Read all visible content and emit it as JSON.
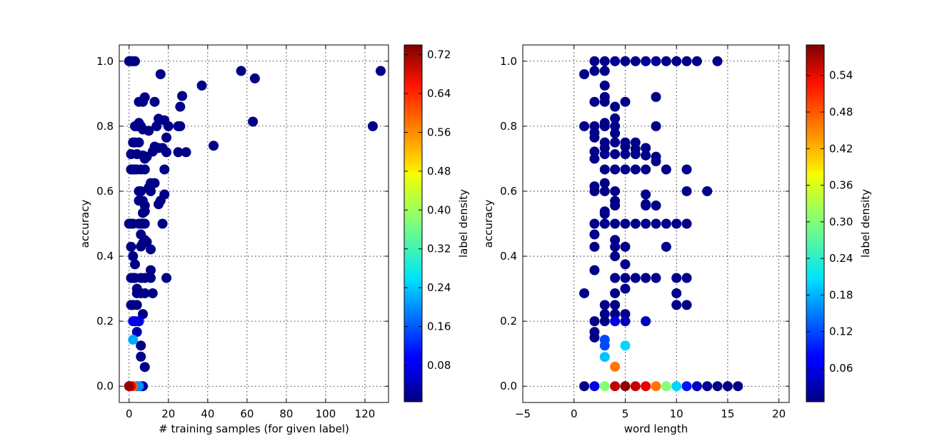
{
  "chart_data": [
    {
      "type": "scatter",
      "title": "",
      "xlabel": "# training samples (for given label)",
      "ylabel": "accuracy",
      "xlim": [
        -5,
        132
      ],
      "ylim": [
        -0.05,
        1.05
      ],
      "xticks": [
        0,
        20,
        40,
        60,
        80,
        100,
        120
      ],
      "yticks": [
        0.0,
        0.2,
        0.4,
        0.6,
        0.8,
        1.0
      ],
      "xtick_labels": [
        "0",
        "20",
        "40",
        "60",
        "80",
        "100",
        "120"
      ],
      "ytick_labels": [
        "0.0",
        "0.2",
        "0.4",
        "0.6",
        "0.8",
        "1.0"
      ],
      "grid": true,
      "colorbar": {
        "label": "label density",
        "range": [
          0.005,
          0.74
        ],
        "ticks": [
          0.08,
          0.16,
          0.24,
          0.32,
          0.4,
          0.48,
          0.56,
          0.64,
          0.72
        ],
        "tick_labels": [
          "0.08",
          "0.16",
          "0.24",
          "0.32",
          "0.40",
          "0.48",
          "0.56",
          "0.64",
          "0.72"
        ]
      },
      "points": [
        [
          0,
          1.0,
          0.01
        ],
        [
          1,
          1.0,
          0.01
        ],
        [
          2,
          1.0,
          0.01
        ],
        [
          3,
          1.0,
          0.01
        ],
        [
          16,
          0.96,
          0.01
        ],
        [
          37,
          0.925,
          0.01
        ],
        [
          57,
          0.97,
          0.01
        ],
        [
          64,
          0.947,
          0.01
        ],
        [
          128,
          0.97,
          0.01
        ],
        [
          5,
          0.875,
          0.01
        ],
        [
          7,
          0.875,
          0.01
        ],
        [
          8,
          0.889,
          0.01
        ],
        [
          13,
          0.875,
          0.01
        ],
        [
          27,
          0.893,
          0.01
        ],
        [
          26,
          0.86,
          0.01
        ],
        [
          3,
          0.8,
          0.01
        ],
        [
          4,
          0.8,
          0.01
        ],
        [
          5,
          0.81,
          0.01
        ],
        [
          6,
          0.8,
          0.01
        ],
        [
          7,
          0.79,
          0.01
        ],
        [
          10,
          0.786,
          0.01
        ],
        [
          14,
          0.8,
          0.01
        ],
        [
          15,
          0.823,
          0.01
        ],
        [
          18,
          0.818,
          0.01
        ],
        [
          20,
          0.8,
          0.01
        ],
        [
          25,
          0.8,
          0.01
        ],
        [
          26,
          0.8,
          0.01
        ],
        [
          63,
          0.814,
          0.01
        ],
        [
          124,
          0.8,
          0.01
        ],
        [
          19,
          0.765,
          0.01
        ],
        [
          2,
          0.75,
          0.01
        ],
        [
          3,
          0.75,
          0.01
        ],
        [
          5,
          0.75,
          0.01
        ],
        [
          13,
          0.737,
          0.01
        ],
        [
          15,
          0.733,
          0.01
        ],
        [
          12,
          0.722,
          0.01
        ],
        [
          43,
          0.74,
          0.01
        ],
        [
          1,
          0.714,
          0.01
        ],
        [
          4,
          0.714,
          0.01
        ],
        [
          7,
          0.71,
          0.01
        ],
        [
          8,
          0.7,
          0.01
        ],
        [
          9,
          0.706,
          0.01
        ],
        [
          17,
          0.733,
          0.01
        ],
        [
          19,
          0.72,
          0.01
        ],
        [
          25,
          0.72,
          0.01
        ],
        [
          29,
          0.72,
          0.01
        ],
        [
          1,
          0.667,
          0.01
        ],
        [
          2,
          0.667,
          0.01
        ],
        [
          3,
          0.667,
          0.01
        ],
        [
          4,
          0.667,
          0.01
        ],
        [
          6,
          0.667,
          0.01
        ],
        [
          8,
          0.667,
          0.01
        ],
        [
          18,
          0.667,
          0.01
        ],
        [
          11,
          0.625,
          0.01
        ],
        [
          13,
          0.625,
          0.01
        ],
        [
          10,
          0.611,
          0.01
        ],
        [
          5,
          0.6,
          0.01
        ],
        [
          6,
          0.6,
          0.01
        ],
        [
          11,
          0.6,
          0.01
        ],
        [
          18,
          0.59,
          0.01
        ],
        [
          5,
          0.571,
          0.01
        ],
        [
          7,
          0.57,
          0.01
        ],
        [
          16,
          0.571,
          0.01
        ],
        [
          15,
          0.56,
          0.01
        ],
        [
          8,
          0.556,
          0.01
        ],
        [
          7,
          0.533,
          0.01
        ],
        [
          8,
          0.538,
          0.01
        ],
        [
          0,
          0.5,
          0.01
        ],
        [
          1,
          0.5,
          0.01
        ],
        [
          2,
          0.5,
          0.01
        ],
        [
          5,
          0.5,
          0.01
        ],
        [
          6,
          0.5,
          0.01
        ],
        [
          7,
          0.5,
          0.01
        ],
        [
          8,
          0.5,
          0.01
        ],
        [
          17,
          0.5,
          0.01
        ],
        [
          6,
          0.467,
          0.01
        ],
        [
          7,
          0.44,
          0.01
        ],
        [
          8,
          0.45,
          0.01
        ],
        [
          9,
          0.444,
          0.01
        ],
        [
          6,
          0.43,
          0.01
        ],
        [
          1,
          0.429,
          0.01
        ],
        [
          11,
          0.421,
          0.01
        ],
        [
          2,
          0.4,
          0.01
        ],
        [
          3,
          0.375,
          0.01
        ],
        [
          11,
          0.357,
          0.01
        ],
        [
          1,
          0.333,
          0.01
        ],
        [
          2,
          0.333,
          0.01
        ],
        [
          3,
          0.333,
          0.01
        ],
        [
          6,
          0.333,
          0.01
        ],
        [
          8,
          0.333,
          0.01
        ],
        [
          11,
          0.333,
          0.01
        ],
        [
          19,
          0.333,
          0.01
        ],
        [
          4,
          0.3,
          0.01
        ],
        [
          4,
          0.286,
          0.01
        ],
        [
          6,
          0.286,
          0.01
        ],
        [
          8,
          0.286,
          0.01
        ],
        [
          12,
          0.286,
          0.01
        ],
        [
          1,
          0.25,
          0.01
        ],
        [
          2,
          0.25,
          0.01
        ],
        [
          4,
          0.25,
          0.01
        ],
        [
          7,
          0.222,
          0.01
        ],
        [
          5,
          0.2,
          0.01
        ],
        [
          2,
          0.2,
          0.08
        ],
        [
          3,
          0.2,
          0.08
        ],
        [
          5,
          0.2,
          0.08
        ],
        [
          4,
          0.167,
          0.04
        ],
        [
          2,
          0.143,
          0.22
        ],
        [
          6,
          0.125,
          0.01
        ],
        [
          6,
          0.091,
          0.01
        ],
        [
          8,
          0.059,
          0.01
        ],
        [
          6,
          0.0,
          0.02
        ],
        [
          7,
          0.0,
          0.03
        ],
        [
          5,
          0.0,
          0.2
        ],
        [
          4,
          0.0,
          0.16
        ],
        [
          2,
          0.0,
          0.58
        ],
        [
          1,
          0.0,
          0.65
        ],
        [
          0,
          0.0,
          0.72
        ]
      ]
    },
    {
      "type": "scatter",
      "title": "",
      "xlabel": "word length",
      "ylabel": "accuracy",
      "xlim": [
        -5,
        21
      ],
      "ylim": [
        -0.05,
        1.05
      ],
      "xticks": [
        -5,
        0,
        5,
        10,
        15,
        20
      ],
      "yticks": [
        0.0,
        0.2,
        0.4,
        0.6,
        0.8,
        1.0
      ],
      "xtick_labels": [
        "−5",
        "0",
        "5",
        "10",
        "15",
        "20"
      ],
      "ytick_labels": [
        "0.0",
        "0.2",
        "0.4",
        "0.6",
        "0.8",
        "1.0"
      ],
      "grid": true,
      "colorbar": {
        "label": "label density",
        "range": [
          0.005,
          0.59
        ],
        "ticks": [
          0.06,
          0.12,
          0.18,
          0.24,
          0.3,
          0.36,
          0.42,
          0.48,
          0.54
        ],
        "tick_labels": [
          "0.06",
          "0.12",
          "0.18",
          "0.24",
          "0.30",
          "0.36",
          "0.42",
          "0.48",
          "0.54"
        ]
      },
      "points": [
        [
          2,
          1.0,
          0.01
        ],
        [
          3,
          1.0,
          0.01
        ],
        [
          4,
          1.0,
          0.02
        ],
        [
          5,
          1.0,
          0.01
        ],
        [
          6,
          1.0,
          0.01
        ],
        [
          7,
          1.0,
          0.02
        ],
        [
          8,
          1.0,
          0.02
        ],
        [
          9,
          1.0,
          0.01
        ],
        [
          10,
          1.0,
          0.01
        ],
        [
          11,
          1.0,
          0.01
        ],
        [
          12,
          1.0,
          0.01
        ],
        [
          14,
          1.0,
          0.01
        ],
        [
          1,
          0.96,
          0.01
        ],
        [
          2,
          0.97,
          0.01
        ],
        [
          3,
          0.97,
          0.01
        ],
        [
          3,
          0.925,
          0.01
        ],
        [
          3,
          0.89,
          0.01
        ],
        [
          3,
          0.875,
          0.01
        ],
        [
          2,
          0.875,
          0.01
        ],
        [
          5,
          0.875,
          0.01
        ],
        [
          4,
          0.86,
          0.01
        ],
        [
          8,
          0.89,
          0.01
        ],
        [
          4,
          0.824,
          0.01
        ],
        [
          3,
          0.81,
          0.01
        ],
        [
          4,
          0.8,
          0.01
        ],
        [
          1,
          0.8,
          0.01
        ],
        [
          2,
          0.8,
          0.01
        ],
        [
          3,
          0.8,
          0.01
        ],
        [
          8,
          0.8,
          0.01
        ],
        [
          2,
          0.78,
          0.01
        ],
        [
          2,
          0.765,
          0.01
        ],
        [
          4,
          0.778,
          0.01
        ],
        [
          3,
          0.75,
          0.01
        ],
        [
          4,
          0.75,
          0.01
        ],
        [
          5,
          0.75,
          0.01
        ],
        [
          6,
          0.75,
          0.01
        ],
        [
          3,
          0.733,
          0.01
        ],
        [
          5,
          0.737,
          0.01
        ],
        [
          6,
          0.73,
          0.01
        ],
        [
          7,
          0.733,
          0.01
        ],
        [
          2,
          0.722,
          0.01
        ],
        [
          3,
          0.714,
          0.01
        ],
        [
          4,
          0.714,
          0.01
        ],
        [
          5,
          0.714,
          0.01
        ],
        [
          6,
          0.714,
          0.01
        ],
        [
          7,
          0.71,
          0.01
        ],
        [
          8,
          0.706,
          0.01
        ],
        [
          8,
          0.692,
          0.01
        ],
        [
          2,
          0.7,
          0.01
        ],
        [
          3,
          0.667,
          0.01
        ],
        [
          4,
          0.667,
          0.01
        ],
        [
          5,
          0.667,
          0.01
        ],
        [
          6,
          0.667,
          0.01
        ],
        [
          7,
          0.667,
          0.01
        ],
        [
          9,
          0.667,
          0.01
        ],
        [
          11,
          0.667,
          0.01
        ],
        [
          3,
          0.625,
          0.01
        ],
        [
          2,
          0.615,
          0.01
        ],
        [
          2,
          0.6,
          0.01
        ],
        [
          3,
          0.6,
          0.01
        ],
        [
          4,
          0.6,
          0.01
        ],
        [
          11,
          0.6,
          0.01
        ],
        [
          13,
          0.6,
          0.01
        ],
        [
          7,
          0.59,
          0.01
        ],
        [
          4,
          0.57,
          0.01
        ],
        [
          4,
          0.556,
          0.01
        ],
        [
          7,
          0.56,
          0.01
        ],
        [
          7,
          0.556,
          0.01
        ],
        [
          8,
          0.556,
          0.01
        ],
        [
          3,
          0.538,
          0.01
        ],
        [
          3,
          0.53,
          0.01
        ],
        [
          2,
          0.5,
          0.01
        ],
        [
          3,
          0.5,
          0.01
        ],
        [
          4,
          0.5,
          0.01
        ],
        [
          5,
          0.5,
          0.01
        ],
        [
          6,
          0.5,
          0.01
        ],
        [
          7,
          0.5,
          0.01
        ],
        [
          8,
          0.5,
          0.01
        ],
        [
          9,
          0.5,
          0.01
        ],
        [
          10,
          0.5,
          0.01
        ],
        [
          11,
          0.5,
          0.01
        ],
        [
          2,
          0.467,
          0.01
        ],
        [
          4,
          0.45,
          0.01
        ],
        [
          2,
          0.429,
          0.01
        ],
        [
          4,
          0.429,
          0.01
        ],
        [
          5,
          0.429,
          0.01
        ],
        [
          9,
          0.429,
          0.01
        ],
        [
          4,
          0.4,
          0.01
        ],
        [
          5,
          0.375,
          0.01
        ],
        [
          2,
          0.357,
          0.01
        ],
        [
          4,
          0.333,
          0.01
        ],
        [
          5,
          0.333,
          0.01
        ],
        [
          6,
          0.333,
          0.01
        ],
        [
          7,
          0.333,
          0.01
        ],
        [
          8,
          0.333,
          0.01
        ],
        [
          10,
          0.333,
          0.01
        ],
        [
          11,
          0.333,
          0.01
        ],
        [
          5,
          0.3,
          0.01
        ],
        [
          1,
          0.286,
          0.01
        ],
        [
          4,
          0.286,
          0.01
        ],
        [
          10,
          0.286,
          0.01
        ],
        [
          3,
          0.25,
          0.01
        ],
        [
          4,
          0.25,
          0.01
        ],
        [
          10,
          0.25,
          0.01
        ],
        [
          11,
          0.25,
          0.01
        ],
        [
          3,
          0.222,
          0.01
        ],
        [
          4,
          0.222,
          0.01
        ],
        [
          5,
          0.222,
          0.01
        ],
        [
          3,
          0.2,
          0.01
        ],
        [
          2,
          0.2,
          0.01
        ],
        [
          4,
          0.2,
          0.06
        ],
        [
          5,
          0.2,
          0.04
        ],
        [
          7,
          0.2,
          0.04
        ],
        [
          2,
          0.167,
          0.01
        ],
        [
          2,
          0.15,
          0.01
        ],
        [
          3,
          0.143,
          0.12
        ],
        [
          3,
          0.125,
          0.12
        ],
        [
          5,
          0.125,
          0.2
        ],
        [
          3,
          0.09,
          0.19
        ],
        [
          4,
          0.06,
          0.45
        ],
        [
          1,
          0.0,
          0.01
        ],
        [
          2,
          0.0,
          0.06
        ],
        [
          3,
          0.0,
          0.3
        ],
        [
          4,
          0.0,
          0.55
        ],
        [
          5,
          0.0,
          0.58
        ],
        [
          6,
          0.0,
          0.55
        ],
        [
          7,
          0.0,
          0.53
        ],
        [
          8,
          0.0,
          0.45
        ],
        [
          9,
          0.0,
          0.3
        ],
        [
          10,
          0.0,
          0.2
        ],
        [
          11,
          0.0,
          0.09
        ],
        [
          12,
          0.0,
          0.04
        ],
        [
          13,
          0.0,
          0.02
        ],
        [
          14,
          0.0,
          0.01
        ],
        [
          15,
          0.0,
          0.01
        ],
        [
          16,
          0.0,
          0.01
        ]
      ]
    }
  ]
}
